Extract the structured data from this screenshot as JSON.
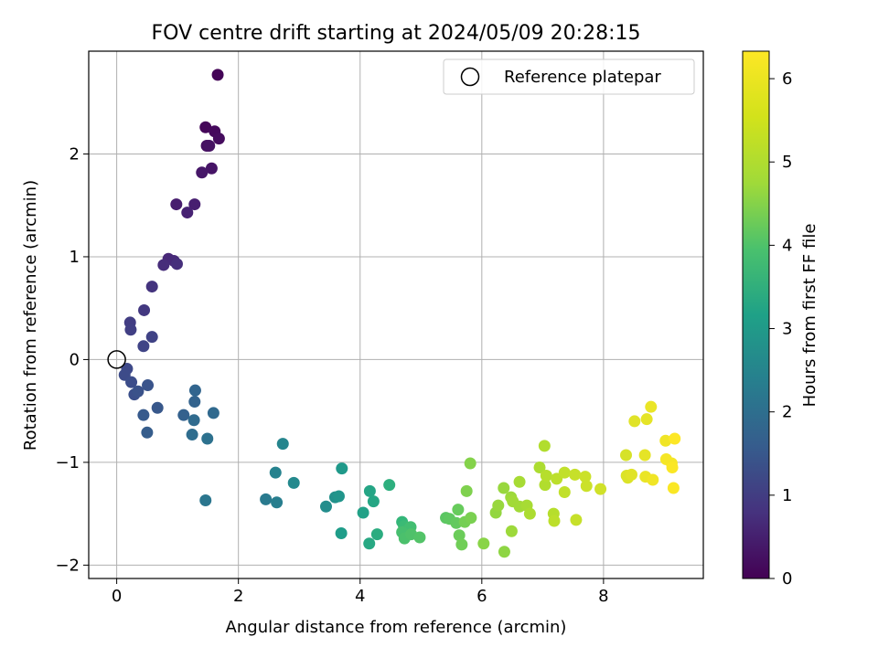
{
  "chart_data": {
    "type": "scatter",
    "title": "FOV centre drift starting at 2024/05/09 20:28:15",
    "xlabel": "Angular distance from reference (arcmin)",
    "ylabel": "Rotation from reference (arcmin)",
    "xlim": [
      -0.46,
      9.64
    ],
    "ylim": [
      -2.13,
      3.0
    ],
    "xticks": [
      0,
      2,
      4,
      6,
      8
    ],
    "yticks": [
      -2,
      -1,
      0,
      1,
      2
    ],
    "xtick_labels": [
      "0",
      "2",
      "4",
      "6",
      "8"
    ],
    "ytick_labels": [
      "−2",
      "−1",
      "0",
      "1",
      "2"
    ],
    "grid": true,
    "legend": {
      "position": "top-right",
      "entries": [
        "Reference platepar"
      ]
    },
    "reference": {
      "x": 0,
      "y": 0
    },
    "colorbar": {
      "label": "Hours from first FF file",
      "colormap": "viridis",
      "range": [
        0,
        6.33
      ],
      "ticks": [
        0,
        1,
        2,
        3,
        4,
        5,
        6
      ],
      "tick_labels": [
        "0",
        "1",
        "2",
        "3",
        "4",
        "5",
        "6"
      ]
    },
    "series": [
      {
        "points": [
          [
            1.66,
            2.77,
            0.05
          ],
          [
            1.46,
            2.26,
            0.1
          ],
          [
            1.61,
            2.22,
            0.15
          ],
          [
            1.68,
            2.15,
            0.2
          ],
          [
            1.48,
            2.08,
            0.25
          ],
          [
            1.52,
            2.08,
            0.3
          ],
          [
            1.56,
            1.86,
            0.35
          ],
          [
            1.4,
            1.82,
            0.4
          ],
          [
            0.98,
            1.51,
            0.5
          ],
          [
            1.28,
            1.51,
            0.55
          ],
          [
            1.16,
            1.43,
            0.6
          ],
          [
            0.85,
            0.98,
            0.7
          ],
          [
            0.94,
            0.96,
            0.75
          ],
          [
            0.77,
            0.92,
            0.8
          ],
          [
            0.99,
            0.93,
            0.85
          ],
          [
            0.58,
            0.71,
            0.95
          ],
          [
            0.45,
            0.48,
            1.05
          ],
          [
            0.22,
            0.36,
            1.15
          ],
          [
            0.23,
            0.29,
            1.2
          ],
          [
            0.58,
            0.22,
            1.25
          ],
          [
            0.44,
            0.13,
            1.3
          ],
          [
            0.17,
            -0.09,
            1.4
          ],
          [
            0.13,
            -0.15,
            1.45
          ],
          [
            0.24,
            -0.22,
            1.5
          ],
          [
            0.29,
            -0.34,
            1.55
          ],
          [
            0.35,
            -0.31,
            1.6
          ],
          [
            0.51,
            -0.25,
            1.65
          ],
          [
            0.67,
            -0.47,
            1.75
          ],
          [
            0.44,
            -0.54,
            1.8
          ],
          [
            0.5,
            -0.71,
            1.85
          ],
          [
            1.1,
            -0.54,
            1.95
          ],
          [
            1.28,
            -0.41,
            2.0
          ],
          [
            1.29,
            -0.3,
            2.05
          ],
          [
            1.59,
            -0.52,
            2.15
          ],
          [
            1.27,
            -0.59,
            2.2
          ],
          [
            1.24,
            -0.73,
            2.25
          ],
          [
            1.49,
            -0.77,
            2.35
          ],
          [
            1.46,
            -1.37,
            2.5
          ],
          [
            2.45,
            -1.36,
            2.6
          ],
          [
            2.63,
            -1.39,
            2.7
          ],
          [
            2.61,
            -1.1,
            2.8
          ],
          [
            2.73,
            -0.82,
            2.9
          ],
          [
            2.91,
            -1.2,
            3.0
          ],
          [
            3.44,
            -1.43,
            3.1
          ],
          [
            3.59,
            -1.34,
            3.2
          ],
          [
            3.65,
            -1.33,
            3.3
          ],
          [
            3.7,
            -1.06,
            3.4
          ],
          [
            3.69,
            -1.69,
            3.5
          ],
          [
            4.05,
            -1.49,
            3.6
          ],
          [
            4.16,
            -1.28,
            3.7
          ],
          [
            4.22,
            -1.38,
            3.75
          ],
          [
            4.15,
            -1.79,
            3.8
          ],
          [
            4.28,
            -1.7,
            3.9
          ],
          [
            4.48,
            -1.22,
            4.0
          ],
          [
            4.69,
            -1.58,
            4.2
          ],
          [
            4.72,
            -1.62,
            4.3
          ],
          [
            4.76,
            -1.66,
            4.35
          ],
          [
            4.83,
            -1.63,
            4.4
          ],
          [
            4.69,
            -1.68,
            4.45
          ],
          [
            4.73,
            -1.74,
            4.5
          ],
          [
            4.84,
            -1.7,
            4.55
          ],
          [
            4.98,
            -1.73,
            4.6
          ],
          [
            5.41,
            -1.54,
            4.7
          ],
          [
            5.47,
            -1.55,
            4.75
          ],
          [
            5.58,
            -1.59,
            4.8
          ],
          [
            5.61,
            -1.46,
            4.85
          ],
          [
            5.63,
            -1.71,
            4.9
          ],
          [
            5.67,
            -1.8,
            4.95
          ],
          [
            5.72,
            -1.58,
            5.0
          ],
          [
            5.82,
            -1.54,
            5.05
          ],
          [
            5.75,
            -1.28,
            5.1
          ],
          [
            5.81,
            -1.01,
            5.15
          ],
          [
            6.03,
            -1.79,
            5.2
          ],
          [
            6.37,
            -1.87,
            5.25
          ],
          [
            6.23,
            -1.49,
            5.3
          ],
          [
            6.27,
            -1.42,
            5.35
          ],
          [
            6.36,
            -1.25,
            5.35
          ],
          [
            6.48,
            -1.34,
            5.4
          ],
          [
            6.49,
            -1.67,
            5.4
          ],
          [
            6.51,
            -1.38,
            5.45
          ],
          [
            6.62,
            -1.43,
            5.45
          ],
          [
            6.62,
            -1.19,
            5.5
          ],
          [
            6.74,
            -1.42,
            5.5
          ],
          [
            6.79,
            -1.5,
            5.55
          ],
          [
            6.95,
            -1.05,
            5.55
          ],
          [
            7.03,
            -0.84,
            5.6
          ],
          [
            7.04,
            -1.22,
            5.6
          ],
          [
            7.06,
            -1.13,
            5.65
          ],
          [
            7.18,
            -1.5,
            5.65
          ],
          [
            7.19,
            -1.57,
            5.7
          ],
          [
            7.23,
            -1.16,
            5.7
          ],
          [
            7.36,
            -1.1,
            5.75
          ],
          [
            7.36,
            -1.29,
            5.75
          ],
          [
            7.53,
            -1.12,
            5.8
          ],
          [
            7.55,
            -1.56,
            5.8
          ],
          [
            7.7,
            -1.14,
            5.85
          ],
          [
            7.72,
            -1.23,
            5.85
          ],
          [
            7.95,
            -1.26,
            5.9
          ],
          [
            8.37,
            -0.93,
            5.95
          ],
          [
            8.38,
            -1.13,
            6.0
          ],
          [
            8.4,
            -1.15,
            6.0
          ],
          [
            8.46,
            -1.12,
            6.05
          ],
          [
            8.51,
            -0.6,
            6.05
          ],
          [
            8.68,
            -0.93,
            6.1
          ],
          [
            8.71,
            -0.58,
            6.1
          ],
          [
            8.69,
            -1.14,
            6.15
          ],
          [
            8.78,
            -0.46,
            6.15
          ],
          [
            8.81,
            -1.17,
            6.2
          ],
          [
            9.02,
            -0.79,
            6.2
          ],
          [
            9.03,
            -0.97,
            6.25
          ],
          [
            9.12,
            -1.01,
            6.25
          ],
          [
            9.13,
            -1.05,
            6.3
          ],
          [
            9.15,
            -1.25,
            6.3
          ],
          [
            9.17,
            -0.77,
            6.33
          ]
        ]
      }
    ]
  }
}
